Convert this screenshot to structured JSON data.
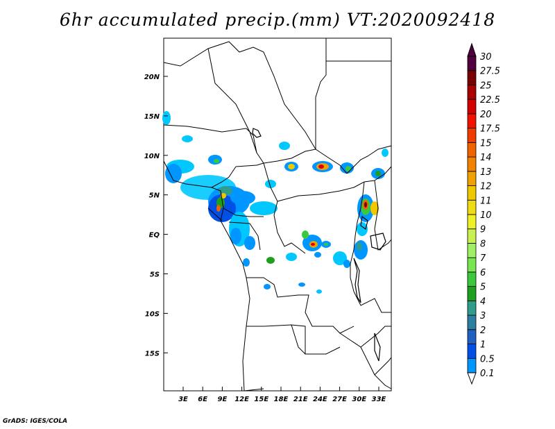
{
  "title": "6hr accumulated precip.(mm) VT:2020092418",
  "footer": "GrADS: IGES/COLA",
  "map": {
    "lat_labels": [
      "20N",
      "15N",
      "10N",
      "5N",
      "EQ",
      "5S",
      "10S",
      "15S"
    ],
    "lon_labels": [
      "3E",
      "6E",
      "9E",
      "12E",
      "15E",
      "18E",
      "21E",
      "24E",
      "27E",
      "30E",
      "33E"
    ]
  },
  "colorbar": {
    "levels": [
      "0.1",
      "0.5",
      "1",
      "2",
      "3",
      "4",
      "5",
      "6",
      "7",
      "8",
      "9",
      "10",
      "11",
      "12",
      "13",
      "14",
      "15",
      "17.5",
      "20",
      "22.5",
      "25",
      "27.5",
      "30"
    ],
    "colors": [
      "#00c8ff",
      "#0096ff",
      "#0050e6",
      "#2060c0",
      "#2a7ea0",
      "#2f9c8c",
      "#1ea01e",
      "#3cc83c",
      "#78e650",
      "#a0f064",
      "#c8f050",
      "#f0f028",
      "#f0dc14",
      "#f0c800",
      "#f0a000",
      "#f08200",
      "#f06400",
      "#f03c00",
      "#f01400",
      "#d20000",
      "#aa0000",
      "#780000",
      "#50003c"
    ]
  }
}
